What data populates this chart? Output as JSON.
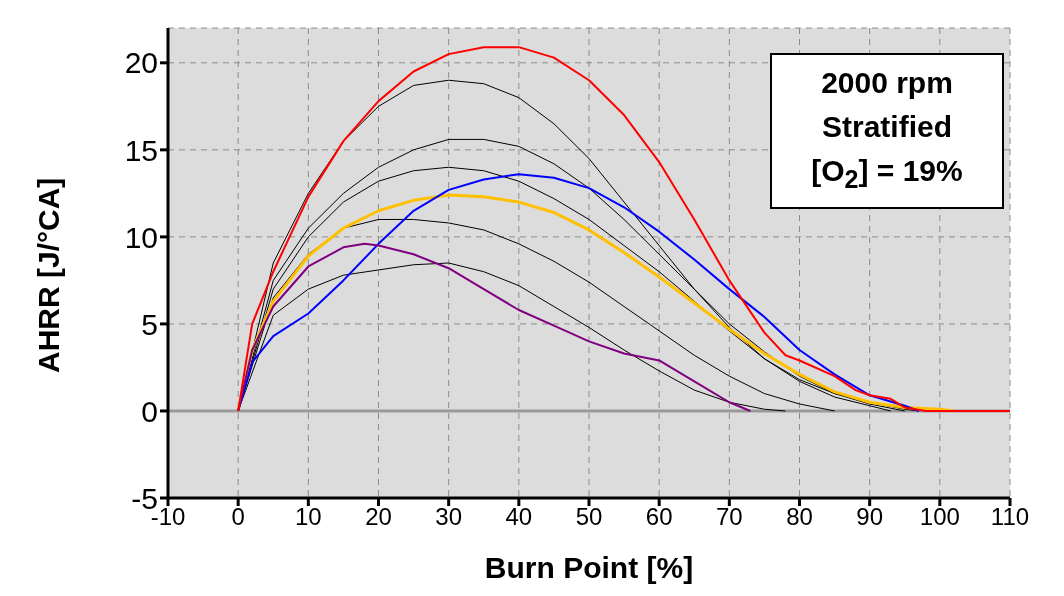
{
  "chart_data": {
    "type": "line",
    "xlabel": "Burn Point [%]",
    "ylabel": "AHRR [J/°CA]",
    "xlim": [
      -10,
      110
    ],
    "xticks": [
      -10,
      0,
      10,
      20,
      30,
      40,
      50,
      60,
      70,
      80,
      90,
      100,
      110
    ],
    "ylim": [
      -5,
      22
    ],
    "yticks": [
      -5,
      0,
      5,
      10,
      15,
      20
    ],
    "grid": true,
    "line_style": "solid",
    "marker": "none",
    "annotations": [
      "2000 rpm",
      "Stratified",
      "[O$_{2}$] = 19%"
    ],
    "ref_lines": [
      {
        "axis": "y",
        "value": 0,
        "color": "#999999"
      }
    ],
    "series": [
      {
        "color": "#000000",
        "x": [
          0,
          5,
          10,
          15,
          20,
          25,
          30,
          35,
          40,
          45,
          50,
          55,
          60,
          65,
          70,
          75,
          80,
          85,
          90,
          95,
          97
        ],
        "values": [
          0,
          8.5,
          12.5,
          15.5,
          17.5,
          18.7,
          19,
          18.8,
          18,
          16.5,
          14.5,
          12,
          9.5,
          7,
          4.8,
          3,
          1.8,
          1,
          0.5,
          0.1,
          0
        ]
      },
      {
        "color": "#000000",
        "x": [
          0,
          5,
          10,
          15,
          20,
          25,
          30,
          35,
          40,
          45,
          50,
          55,
          60,
          65,
          70,
          75,
          78
        ],
        "values": [
          0,
          5.5,
          7,
          7.8,
          8.1,
          8.4,
          8.5,
          8,
          7.2,
          6,
          4.8,
          3.5,
          2.3,
          1.2,
          0.5,
          0.1,
          0
        ]
      },
      {
        "color": "#000000",
        "x": [
          0,
          5,
          10,
          15,
          20,
          25,
          30,
          35,
          40,
          45,
          50,
          55,
          60,
          65,
          70,
          75,
          80,
          85,
          90,
          95
        ],
        "values": [
          0,
          7.5,
          10.5,
          12.5,
          14,
          15,
          15.6,
          15.6,
          15.2,
          14.2,
          12.8,
          11,
          9,
          7,
          5,
          3.4,
          2,
          1,
          0.4,
          0
        ]
      },
      {
        "color": "#000000",
        "x": [
          0,
          5,
          10,
          15,
          20,
          25,
          30,
          35,
          40,
          45,
          50,
          55,
          60,
          65,
          70,
          75,
          80,
          85
        ],
        "values": [
          0,
          6.5,
          9,
          10.5,
          11,
          11,
          10.8,
          10.4,
          9.6,
          8.6,
          7.4,
          6,
          4.6,
          3.2,
          2,
          1,
          0.4,
          0
        ]
      },
      {
        "color": "#000000",
        "x": [
          0,
          5,
          10,
          15,
          20,
          25,
          30,
          35,
          40,
          45,
          50,
          55,
          60,
          65,
          70,
          75,
          80,
          85,
          90,
          93
        ],
        "values": [
          0,
          7,
          10,
          12,
          13.2,
          13.8,
          14,
          13.8,
          13.2,
          12.2,
          11,
          9.5,
          8,
          6.3,
          4.6,
          3,
          1.7,
          0.8,
          0.3,
          0
        ]
      },
      {
        "color": "#ffc000",
        "x": [
          0,
          2,
          5,
          10,
          15,
          20,
          25,
          30,
          35,
          40,
          45,
          50,
          55,
          60,
          65,
          70,
          75,
          80,
          85,
          90,
          95,
          100,
          102
        ],
        "values": [
          0,
          3.5,
          6.3,
          8.9,
          10.5,
          11.5,
          12.1,
          12.4,
          12.3,
          12,
          11.4,
          10.4,
          9.1,
          7.7,
          6.2,
          4.7,
          3.3,
          2.1,
          1.1,
          0.5,
          0.2,
          0.1,
          0
        ]
      },
      {
        "color": "#0000ff",
        "x": [
          0,
          2,
          5,
          10,
          15,
          20,
          25,
          30,
          35,
          40,
          45,
          50,
          55,
          60,
          65,
          70,
          75,
          80,
          85,
          90,
          95,
          97
        ],
        "values": [
          0,
          2.8,
          4.3,
          5.6,
          7.5,
          9.6,
          11.5,
          12.7,
          13.3,
          13.6,
          13.4,
          12.8,
          11.7,
          10.3,
          8.7,
          7,
          5.4,
          3.5,
          2.1,
          0.9,
          0.3,
          0
        ]
      },
      {
        "color": "#800080",
        "x": [
          0,
          2,
          5,
          10,
          15,
          18,
          20,
          25,
          30,
          35,
          40,
          45,
          50,
          55,
          60,
          65,
          70,
          73
        ],
        "values": [
          0,
          3.5,
          6,
          8.3,
          9.4,
          9.6,
          9.5,
          9,
          8.2,
          7,
          5.8,
          4.9,
          4,
          3.3,
          2.9,
          1.7,
          0.5,
          0
        ]
      },
      {
        "color": "#ff0000",
        "x": [
          0,
          2,
          5,
          10,
          15,
          20,
          25,
          30,
          35,
          40,
          45,
          50,
          55,
          60,
          65,
          70,
          75,
          78,
          80,
          85,
          88,
          90,
          93,
          95,
          98,
          110
        ],
        "values": [
          0,
          5,
          8,
          12.3,
          15.5,
          17.8,
          19.5,
          20.5,
          20.9,
          20.9,
          20.3,
          19,
          17,
          14.3,
          11,
          7.5,
          4.5,
          3.2,
          2.9,
          2,
          1.2,
          0.9,
          0.7,
          0.2,
          0,
          0
        ]
      }
    ]
  }
}
